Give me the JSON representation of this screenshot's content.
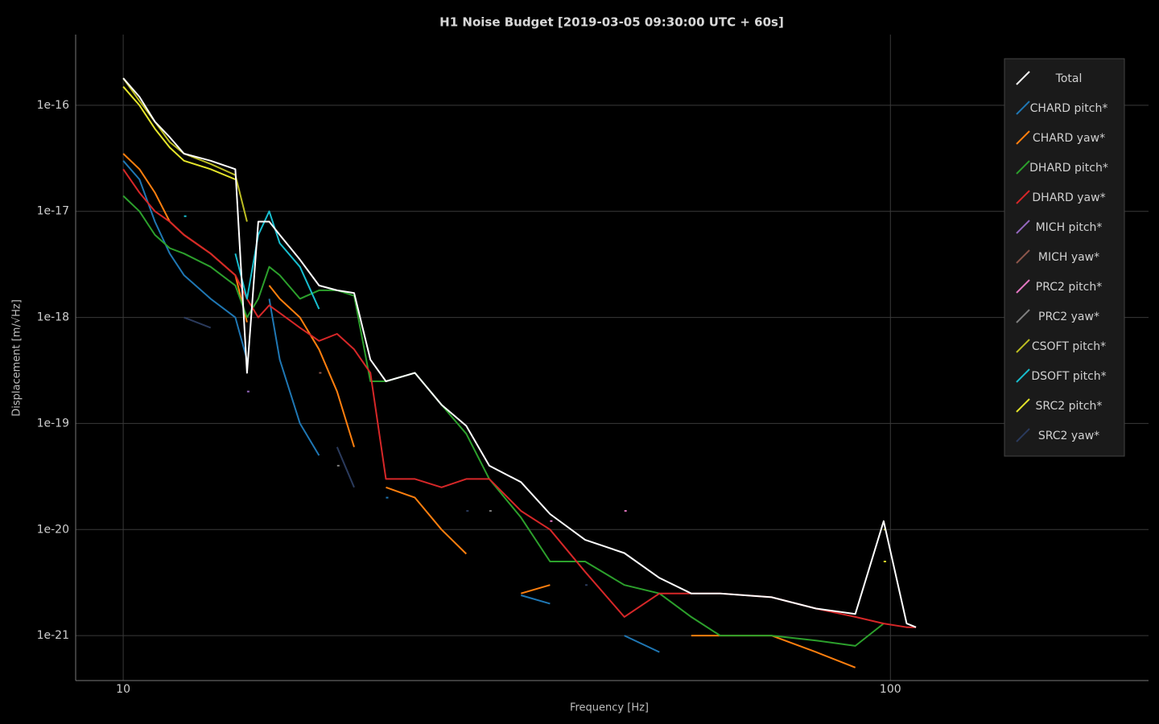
{
  "chart_data": {
    "type": "line",
    "title": "H1 Noise Budget [2019-03-05 09:30:00 UTC + 60s]",
    "x_label": "Frequency [Hz]",
    "y_label": "Displacement [m/√Hz]",
    "x_log": true,
    "y_log": true,
    "grid": true,
    "legend": "upper right",
    "xlim": [
      8.67,
      217
    ],
    "ylim": [
      3.77e-22,
      4.64e-16
    ],
    "xticks": [
      10,
      100
    ],
    "yticks": [
      1e-21,
      1e-20,
      1e-19,
      1e-18,
      1e-17,
      1e-16
    ],
    "x": [
      10,
      10.5,
      11,
      11.5,
      12,
      13,
      14,
      14.5,
      15,
      15.5,
      16,
      17,
      18,
      19,
      20,
      21,
      22,
      24,
      26,
      28,
      30,
      33,
      36,
      40,
      45,
      50,
      55,
      60,
      70,
      80,
      90,
      98,
      105,
      108
    ],
    "series": [
      {
        "name": "Total",
        "color": "#ffffff",
        "values": [
          1.8e-16,
          1.2e-16,
          7e-17,
          5e-17,
          3.5e-17,
          3e-17,
          2.5e-17,
          3e-19,
          8e-18,
          8e-18,
          6e-18,
          3.5e-18,
          2e-18,
          1.8e-18,
          1.7e-18,
          4e-19,
          2.5e-19,
          3e-19,
          1.5e-19,
          9.5e-20,
          4e-20,
          2.8e-20,
          1.4e-20,
          8e-21,
          6e-21,
          3.5e-21,
          2.5e-21,
          2.5e-21,
          2.3e-21,
          1.8e-21,
          1.6e-21,
          1.2e-20,
          1.3e-21,
          1.2e-21
        ]
      },
      {
        "name": "CHARD pitch*",
        "color": "#1f77b4",
        "values": [
          3e-17,
          2e-17,
          8e-18,
          4e-18,
          2.5e-18,
          1.5e-18,
          1e-18,
          4e-19,
          null,
          1.5e-18,
          4e-19,
          1e-19,
          5e-20,
          null,
          null,
          null,
          2e-20,
          null,
          null,
          null,
          null,
          2.4e-21,
          2e-21,
          null,
          1e-21,
          7e-22,
          null,
          null,
          null,
          null,
          null,
          null,
          null,
          null
        ]
      },
      {
        "name": "CHARD yaw*",
        "color": "#ff7f0e",
        "values": [
          3.5e-17,
          2.5e-17,
          1.5e-17,
          8e-18,
          6e-18,
          4e-18,
          2.5e-18,
          9e-19,
          null,
          2e-18,
          1.5e-18,
          1e-18,
          5e-19,
          2e-19,
          6e-20,
          null,
          2.5e-20,
          2e-20,
          1e-20,
          5.9e-21,
          null,
          2.5e-21,
          3e-21,
          null,
          null,
          null,
          1e-21,
          1e-21,
          1e-21,
          7e-22,
          5e-22,
          null,
          null,
          null
        ]
      },
      {
        "name": "DHARD pitch*",
        "color": "#2ca02c",
        "values": [
          1.4e-17,
          1e-17,
          6e-18,
          4.5e-18,
          4e-18,
          3e-18,
          2e-18,
          1e-18,
          1.5e-18,
          3e-18,
          2.5e-18,
          1.5e-18,
          1.8e-18,
          1.8e-18,
          1.6e-18,
          2.5e-19,
          2.5e-19,
          3e-19,
          1.5e-19,
          8e-20,
          3e-20,
          1.3e-20,
          5e-21,
          5e-21,
          3e-21,
          2.5e-21,
          1.5e-21,
          1e-21,
          1e-21,
          9e-22,
          8e-22,
          1.3e-21,
          null,
          null
        ]
      },
      {
        "name": "DHARD yaw*",
        "color": "#d62728",
        "values": [
          2.5e-17,
          1.5e-17,
          1e-17,
          8e-18,
          6e-18,
          4e-18,
          2.5e-18,
          1.5e-18,
          1e-18,
          1.3e-18,
          1.1e-18,
          8e-19,
          6e-19,
          7e-19,
          5e-19,
          3e-19,
          3e-20,
          3e-20,
          2.5e-20,
          3e-20,
          3e-20,
          1.5e-20,
          1e-20,
          4e-21,
          1.5e-21,
          2.5e-21,
          2.5e-21,
          2.5e-21,
          2.3e-21,
          1.8e-21,
          1.5e-21,
          1.3e-21,
          1.2e-21,
          1.2e-21
        ]
      },
      {
        "name": "MICH pitch*",
        "color": "#9467bd",
        "values": [
          null,
          null,
          null,
          null,
          null,
          null,
          null,
          2e-19,
          null,
          null,
          null,
          null,
          null,
          null,
          null,
          null,
          null,
          null,
          null,
          null,
          null,
          null,
          null,
          null,
          null,
          null,
          null,
          null,
          null,
          null,
          null,
          null,
          null,
          null
        ]
      },
      {
        "name": "MICH yaw*",
        "color": "#8c564b",
        "values": [
          null,
          null,
          null,
          null,
          null,
          null,
          null,
          null,
          null,
          null,
          null,
          null,
          3e-19,
          null,
          null,
          null,
          null,
          null,
          null,
          null,
          null,
          null,
          null,
          null,
          null,
          null,
          null,
          null,
          null,
          null,
          null,
          null,
          null,
          null
        ]
      },
      {
        "name": "PRC2 pitch*",
        "color": "#e377c2",
        "values": [
          null,
          null,
          null,
          null,
          null,
          null,
          null,
          null,
          null,
          null,
          null,
          null,
          null,
          null,
          null,
          null,
          null,
          null,
          null,
          null,
          null,
          null,
          1.2e-20,
          null,
          1.5e-20,
          null,
          null,
          null,
          null,
          null,
          null,
          null,
          null,
          null
        ]
      },
      {
        "name": "PRC2 yaw*",
        "color": "#7f7f7f",
        "values": [
          null,
          null,
          null,
          null,
          null,
          null,
          null,
          null,
          null,
          null,
          null,
          null,
          null,
          4e-20,
          null,
          null,
          null,
          null,
          null,
          null,
          1.5e-20,
          null,
          null,
          null,
          null,
          null,
          null,
          null,
          null,
          null,
          null,
          null,
          null,
          null
        ]
      },
      {
        "name": "CSOFT pitch*",
        "color": "#bcbd22",
        "values": [
          1.8e-16,
          1.1e-16,
          7e-17,
          4.5e-17,
          3.5e-17,
          2.8e-17,
          2.2e-17,
          8e-18,
          null,
          null,
          null,
          null,
          null,
          null,
          null,
          null,
          null,
          null,
          null,
          null,
          null,
          null,
          null,
          null,
          null,
          null,
          null,
          null,
          null,
          null,
          null,
          1e-20,
          null,
          null
        ]
      },
      {
        "name": "DSOFT pitch*",
        "color": "#17becf",
        "values": [
          null,
          null,
          null,
          null,
          9e-18,
          null,
          4e-18,
          1.5e-18,
          6e-18,
          1e-17,
          5e-18,
          3e-18,
          1.2e-18,
          null,
          null,
          null,
          null,
          null,
          null,
          null,
          null,
          null,
          null,
          null,
          null,
          null,
          null,
          null,
          null,
          null,
          null,
          null,
          null,
          null
        ]
      },
      {
        "name": "SRC2 pitch*",
        "color": "#e5e52b",
        "values": [
          1.5e-16,
          1e-16,
          6e-17,
          4e-17,
          3e-17,
          2.5e-17,
          2e-17,
          null,
          null,
          null,
          null,
          null,
          null,
          null,
          null,
          null,
          null,
          null,
          null,
          null,
          null,
          null,
          null,
          null,
          null,
          null,
          null,
          null,
          null,
          null,
          null,
          5e-21,
          null,
          null
        ]
      },
      {
        "name": "SRC2 yaw*",
        "color": "#2a3a5c",
        "values": [
          null,
          null,
          null,
          null,
          1e-18,
          8e-19,
          null,
          null,
          null,
          null,
          null,
          null,
          null,
          6e-20,
          2.5e-20,
          null,
          null,
          null,
          null,
          1.5e-20,
          null,
          null,
          null,
          3e-21,
          null,
          null,
          null,
          null,
          null,
          null,
          null,
          null,
          null,
          null
        ]
      }
    ]
  }
}
